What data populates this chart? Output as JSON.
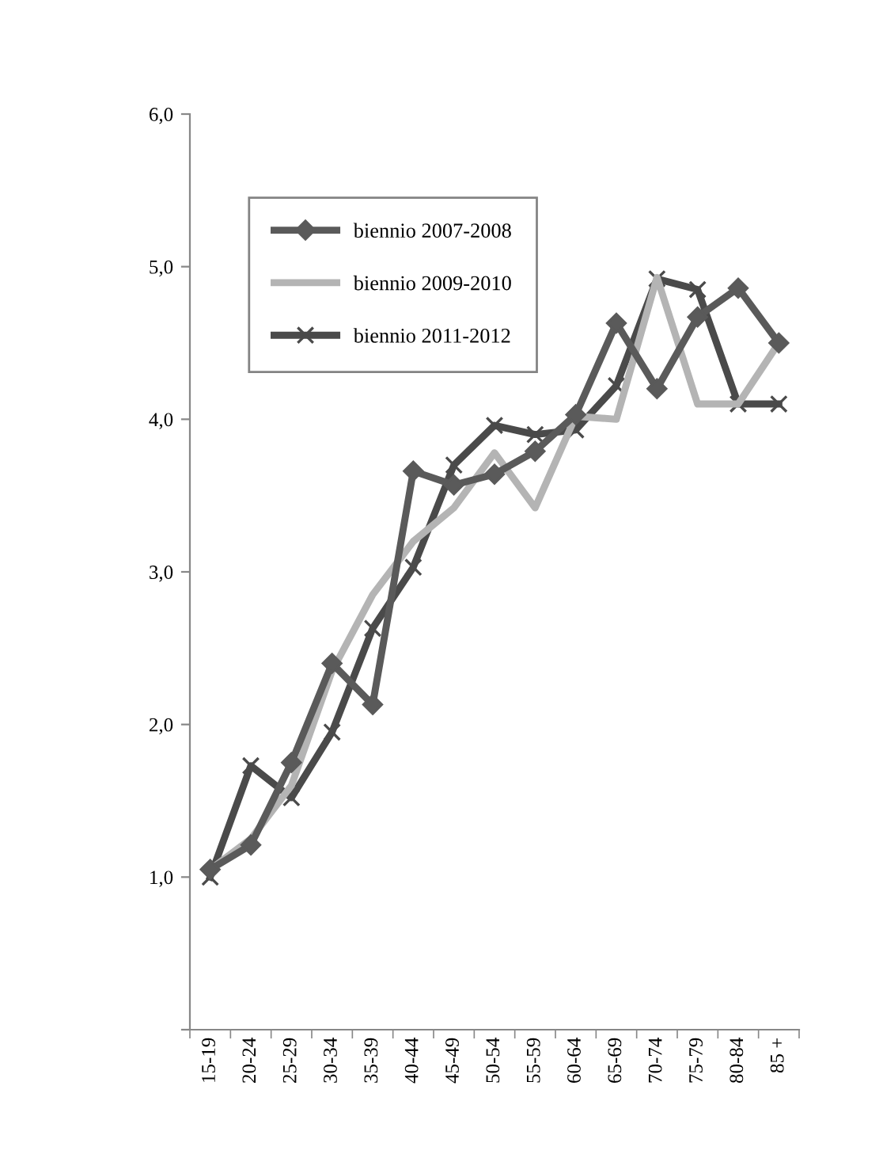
{
  "chart_data": {
    "type": "line",
    "categories": [
      "15-19",
      "20-24",
      "25-29",
      "30-34",
      "35-39",
      "40-44",
      "45-49",
      "50-54",
      "55-59",
      "60-64",
      "65-69",
      "70-74",
      "75-79",
      "80-84",
      "85 +"
    ],
    "ylim": [
      0,
      6
    ],
    "yticks": [
      {
        "value": 0,
        "label": null
      },
      {
        "value": 1,
        "label": "1,0"
      },
      {
        "value": 2,
        "label": "2,0"
      },
      {
        "value": 3,
        "label": "3,0"
      },
      {
        "value": 4,
        "label": "4,0"
      },
      {
        "value": 5,
        "label": "5,0"
      },
      {
        "value": 6,
        "label": "6,0"
      }
    ],
    "grid": false,
    "legend": "top left",
    "series": [
      {
        "name": "biennio 2007-2008",
        "color": "#5a5a5a",
        "marker": "diamond",
        "values": [
          1.05,
          1.21,
          1.75,
          2.4,
          2.13,
          3.66,
          3.57,
          3.64,
          3.79,
          4.03,
          4.63,
          4.2,
          4.67,
          4.86,
          4.5
        ]
      },
      {
        "name": "biennio 2009-2010",
        "color": "#b4b4b4",
        "marker": "none",
        "values": [
          1.05,
          1.25,
          1.6,
          2.35,
          2.85,
          3.2,
          3.42,
          3.78,
          3.42,
          4.02,
          4.0,
          4.93,
          4.1,
          4.1,
          4.5
        ]
      },
      {
        "name": "biennio 2011-2012",
        "color": "#4a4a4a",
        "marker": "cross",
        "values": [
          1.0,
          1.73,
          1.52,
          1.95,
          2.63,
          3.03,
          3.7,
          3.96,
          3.9,
          3.93,
          4.22,
          4.92,
          4.85,
          4.1,
          4.1
        ]
      }
    ]
  }
}
